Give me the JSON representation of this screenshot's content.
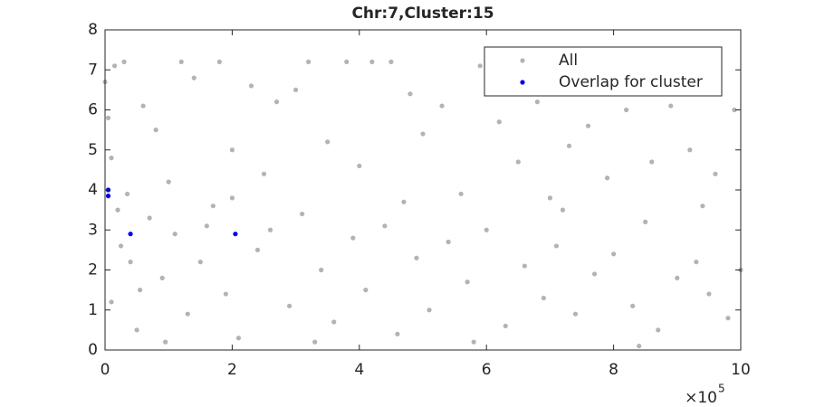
{
  "chart_data": {
    "type": "scatter",
    "title": "Chr:7,Cluster:15",
    "x_multiplier": {
      "base": "×10",
      "exponent": "5"
    },
    "xlim": [
      0,
      1000000
    ],
    "xticks": [
      {
        "value": 0,
        "label": "0"
      },
      {
        "value": 200000,
        "label": "2"
      },
      {
        "value": 400000,
        "label": "4"
      },
      {
        "value": 600000,
        "label": "6"
      },
      {
        "value": 800000,
        "label": "8"
      },
      {
        "value": 1000000,
        "label": "10"
      }
    ],
    "ylim": [
      0,
      8
    ],
    "yticks": [
      0,
      1,
      2,
      3,
      4,
      5,
      6,
      7,
      8
    ],
    "legend_position": "upper-right",
    "series": [
      {
        "name": "All",
        "color": "#b3b3b3",
        "x": [
          0,
          5000,
          10000,
          15000,
          20000,
          30000,
          40000,
          60000,
          80000,
          100000,
          120000,
          140000,
          160000,
          180000,
          200000,
          230000,
          250000,
          270000,
          300000,
          320000,
          350000,
          380000,
          400000,
          420000,
          450000,
          480000,
          500000,
          530000,
          560000,
          590000,
          620000,
          650000,
          680000,
          700000,
          730000,
          760000,
          790000,
          820000,
          860000,
          890000,
          920000,
          960000,
          990000,
          10000,
          25000,
          50000,
          70000,
          90000,
          110000,
          130000,
          150000,
          170000,
          190000,
          210000,
          240000,
          260000,
          290000,
          310000,
          340000,
          360000,
          390000,
          410000,
          440000,
          460000,
          490000,
          510000,
          540000,
          570000,
          600000,
          630000,
          660000,
          690000,
          710000,
          740000,
          770000,
          800000,
          830000,
          850000,
          870000,
          900000,
          930000,
          950000,
          980000,
          1000000,
          35000,
          55000,
          95000,
          200000,
          330000,
          470000,
          580000,
          720000,
          840000,
          940000
        ],
        "values": [
          6.7,
          5.8,
          4.8,
          7.1,
          3.5,
          7.2,
          2.2,
          6.1,
          5.5,
          4.2,
          7.2,
          6.8,
          3.1,
          7.2,
          5.0,
          6.6,
          4.4,
          6.2,
          6.5,
          7.2,
          5.2,
          7.2,
          4.6,
          7.2,
          7.2,
          6.4,
          5.4,
          6.1,
          3.9,
          7.1,
          5.7,
          4.7,
          6.2,
          3.8,
          5.1,
          5.6,
          4.3,
          6.0,
          4.7,
          6.1,
          5.0,
          4.4,
          6.0,
          1.2,
          2.6,
          0.5,
          3.3,
          1.8,
          2.9,
          0.9,
          2.2,
          3.6,
          1.4,
          0.3,
          2.5,
          3.0,
          1.1,
          3.4,
          2.0,
          0.7,
          2.8,
          1.5,
          3.1,
          0.4,
          2.3,
          1.0,
          2.7,
          1.7,
          3.0,
          0.6,
          2.1,
          1.3,
          2.6,
          0.9,
          1.9,
          2.4,
          1.1,
          3.2,
          0.5,
          1.8,
          2.2,
          1.4,
          0.8,
          2.0,
          3.9,
          1.5,
          0.2,
          3.8,
          0.2,
          3.7,
          0.2,
          3.5,
          0.1,
          3.6
        ]
      },
      {
        "name": "Overlap for cluster",
        "color": "#0000e6",
        "x": [
          5000,
          5000,
          40000,
          205000
        ],
        "values": [
          4.0,
          3.85,
          2.9,
          2.9
        ]
      }
    ]
  }
}
